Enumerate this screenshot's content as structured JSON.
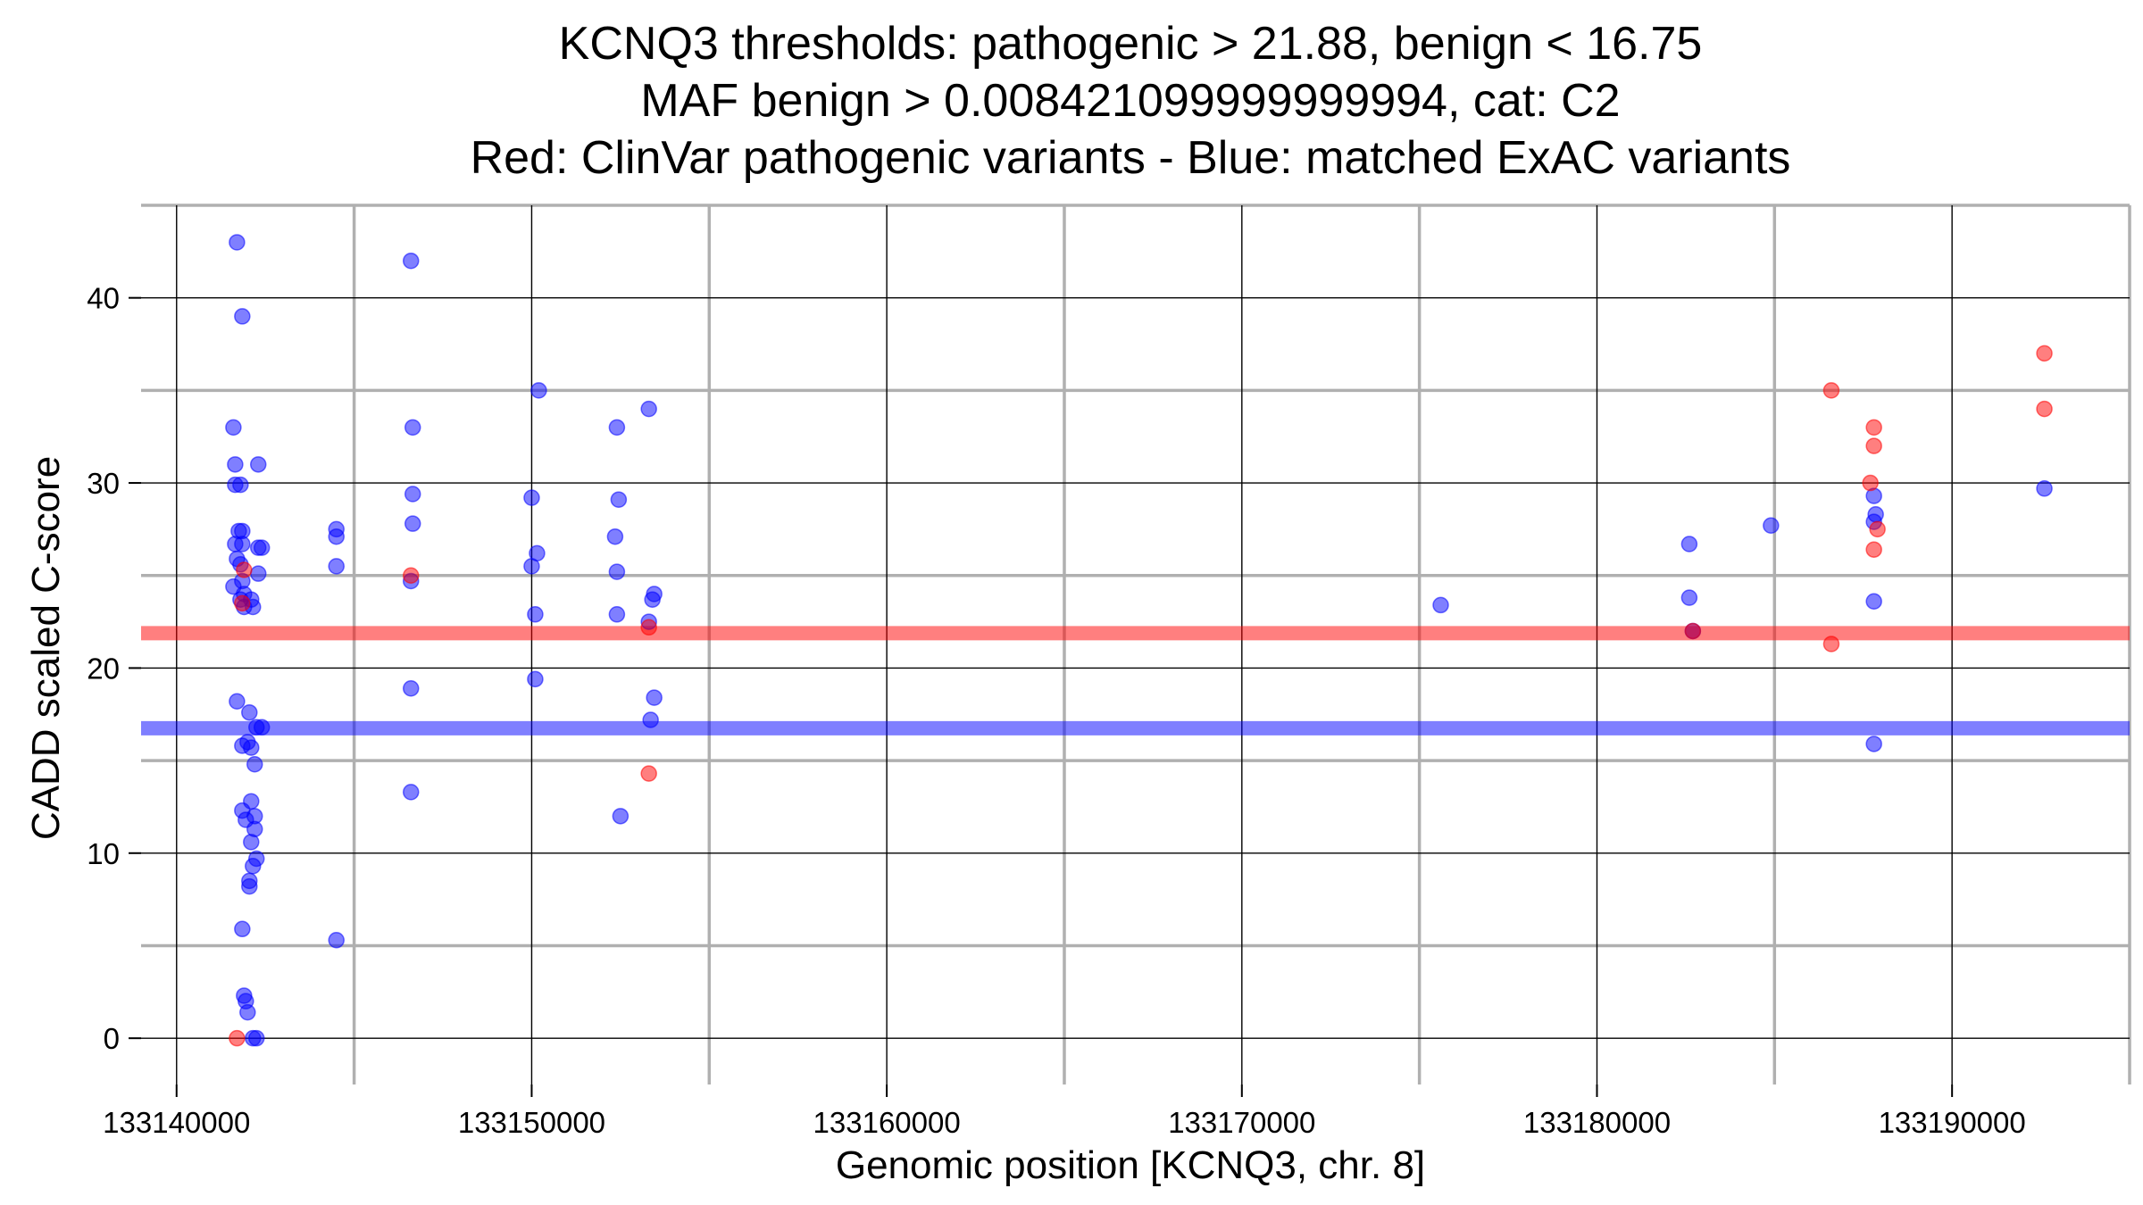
{
  "chart_data": {
    "type": "scatter",
    "title_lines": [
      "KCNQ3 thresholds: pathogenic > 21.88, benign < 16.75",
      "MAF benign > 0.008421099999999994, cat: C2",
      "Red: ClinVar pathogenic variants - Blue: matched ExAC variants"
    ],
    "xlabel": "Genomic position [KCNQ3, chr. 8]",
    "ylabel": "CADD scaled C-score",
    "xlim": [
      133139000,
      133195000
    ],
    "ylim": [
      -2.5,
      45
    ],
    "x_major_ticks": [
      133140000,
      133150000,
      133160000,
      133170000,
      133180000,
      133190000
    ],
    "x_tick_labels": [
      "133140000",
      "133150000",
      "133160000",
      "133170000",
      "133180000",
      "133190000"
    ],
    "x_minor_ticks": [
      133145000,
      133155000,
      133165000,
      133175000,
      133185000,
      133195000
    ],
    "y_major_ticks": [
      0,
      10,
      20,
      30,
      40
    ],
    "y_tick_labels": [
      "0",
      "10",
      "20",
      "30",
      "40"
    ],
    "y_minor_ticks": [
      5,
      15,
      25,
      35,
      45
    ],
    "grid": true,
    "thresholds": [
      {
        "name": "pathogenic",
        "value": 21.88,
        "color": "#ff0000"
      },
      {
        "name": "benign",
        "value": 16.75,
        "color": "#0000ff"
      }
    ],
    "colors": {
      "pathogenic": "#ff0000",
      "benign": "#0000ff"
    },
    "series": [
      {
        "name": "ClinVar pathogenic variants",
        "color": "#ff0000",
        "points": [
          [
            133141700,
            0.0
          ],
          [
            133141900,
            25.3
          ],
          [
            133141850,
            23.5
          ],
          [
            133146600,
            25.0
          ],
          [
            133153300,
            22.2
          ],
          [
            133153300,
            14.3
          ],
          [
            133182700,
            22.0
          ],
          [
            133186600,
            21.3
          ],
          [
            133186600,
            35.0
          ],
          [
            133187800,
            33.0
          ],
          [
            133187800,
            32.0
          ],
          [
            133187700,
            30.0
          ],
          [
            133187900,
            27.5
          ],
          [
            133187800,
            26.4
          ],
          [
            133192600,
            37.0
          ],
          [
            133192600,
            34.0
          ]
        ]
      },
      {
        "name": "matched ExAC variants",
        "color": "#0000ff",
        "points": [
          [
            133141700,
            43.0
          ],
          [
            133141850,
            39.0
          ],
          [
            133141600,
            33.0
          ],
          [
            133141650,
            31.0
          ],
          [
            133142300,
            31.0
          ],
          [
            133141650,
            29.9
          ],
          [
            133141800,
            29.9
          ],
          [
            133141750,
            27.4
          ],
          [
            133141850,
            27.4
          ],
          [
            133141650,
            26.7
          ],
          [
            133141850,
            26.7
          ],
          [
            133142300,
            26.5
          ],
          [
            133142400,
            26.5
          ],
          [
            133141700,
            25.9
          ],
          [
            133141800,
            25.6
          ],
          [
            133142300,
            25.1
          ],
          [
            133141850,
            24.7
          ],
          [
            133141600,
            24.4
          ],
          [
            133141900,
            24.0
          ],
          [
            133142100,
            23.7
          ],
          [
            133141800,
            23.7
          ],
          [
            133141900,
            23.3
          ],
          [
            133142150,
            23.3
          ],
          [
            133141700,
            18.2
          ],
          [
            133142050,
            17.6
          ],
          [
            133142250,
            16.8
          ],
          [
            133142400,
            16.8
          ],
          [
            133142000,
            16.0
          ],
          [
            133141850,
            15.8
          ],
          [
            133142100,
            15.7
          ],
          [
            133142200,
            14.8
          ],
          [
            133142100,
            12.8
          ],
          [
            133141850,
            12.3
          ],
          [
            133142200,
            12.0
          ],
          [
            133141950,
            11.8
          ],
          [
            133142200,
            11.3
          ],
          [
            133142100,
            10.6
          ],
          [
            133142250,
            9.7
          ],
          [
            133142150,
            9.3
          ],
          [
            133142050,
            8.5
          ],
          [
            133142050,
            8.2
          ],
          [
            133141850,
            5.9
          ],
          [
            133141900,
            2.3
          ],
          [
            133141950,
            2.0
          ],
          [
            133142000,
            1.4
          ],
          [
            133142150,
            0.0
          ],
          [
            133142250,
            0.0
          ],
          [
            133144500,
            27.5
          ],
          [
            133144500,
            27.1
          ],
          [
            133144500,
            25.5
          ],
          [
            133144500,
            5.3
          ],
          [
            133146600,
            42.0
          ],
          [
            133146650,
            33.0
          ],
          [
            133146650,
            29.4
          ],
          [
            133146650,
            27.8
          ],
          [
            133146600,
            24.7
          ],
          [
            133146600,
            18.9
          ],
          [
            133146600,
            13.3
          ],
          [
            133150200,
            35.0
          ],
          [
            133150000,
            29.2
          ],
          [
            133150150,
            26.2
          ],
          [
            133150000,
            25.5
          ],
          [
            133150100,
            22.9
          ],
          [
            133150100,
            19.4
          ],
          [
            133152400,
            33.0
          ],
          [
            133152450,
            29.1
          ],
          [
            133152350,
            27.1
          ],
          [
            133152400,
            25.2
          ],
          [
            133152400,
            22.9
          ],
          [
            133152500,
            12.0
          ],
          [
            133153300,
            34.0
          ],
          [
            133153450,
            24.0
          ],
          [
            133153400,
            23.7
          ],
          [
            133153300,
            22.5
          ],
          [
            133153450,
            18.4
          ],
          [
            133153350,
            17.2
          ],
          [
            133175600,
            23.4
          ],
          [
            133182600,
            26.7
          ],
          [
            133182600,
            23.8
          ],
          [
            133182700,
            22.0
          ],
          [
            133184900,
            27.7
          ],
          [
            133187800,
            29.3
          ],
          [
            133187850,
            28.3
          ],
          [
            133187800,
            27.9
          ],
          [
            133187800,
            23.6
          ],
          [
            133187800,
            15.9
          ],
          [
            133192600,
            29.7
          ]
        ]
      }
    ]
  }
}
